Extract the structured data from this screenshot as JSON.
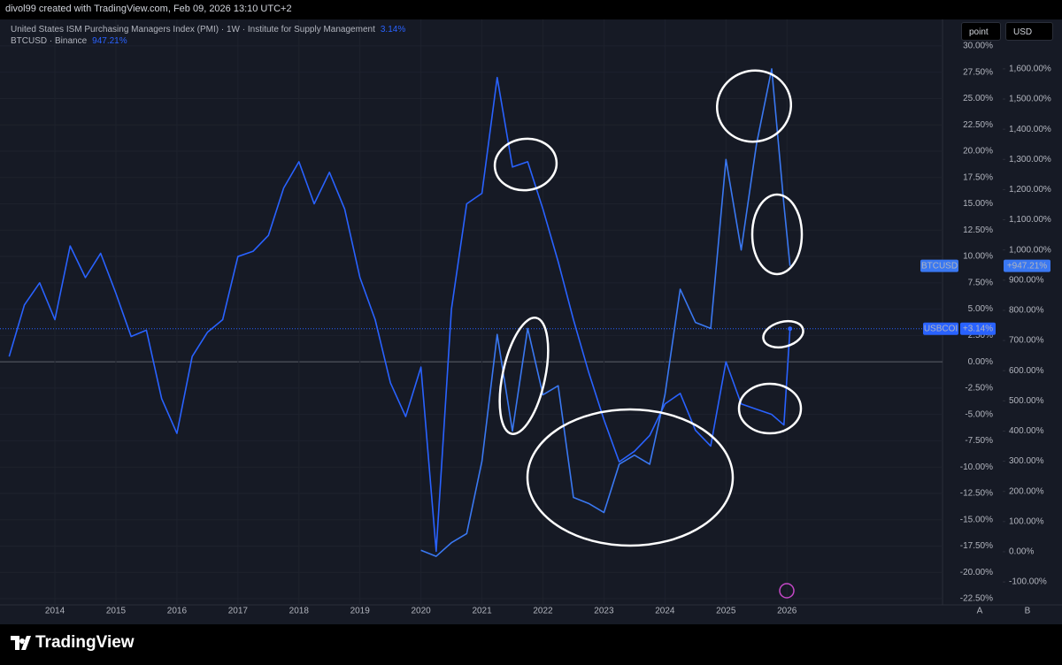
{
  "header": {
    "credit": "divol99 created with TradingView.com, Feb 09, 2026 13:10 UTC+2"
  },
  "toolbar": {
    "buttons": [
      "point",
      "USD"
    ]
  },
  "chart_data": {
    "type": "line",
    "x": [
      2013.25,
      2013.5,
      2013.75,
      2014,
      2014.25,
      2014.5,
      2014.75,
      2015,
      2015.25,
      2015.5,
      2015.75,
      2016,
      2016.25,
      2016.5,
      2016.75,
      2017,
      2017.25,
      2017.5,
      2017.75,
      2018,
      2018.25,
      2018.5,
      2018.75,
      2019,
      2019.25,
      2019.5,
      2019.75,
      2020,
      2020.25,
      2020.5,
      2020.75,
      2021,
      2021.25,
      2021.5,
      2021.75,
      2022,
      2022.25,
      2022.5,
      2022.75,
      2023,
      2023.25,
      2023.5,
      2023.75,
      2024,
      2024.25,
      2024.5,
      2024.75,
      2025,
      2025.25,
      2025.5,
      2025.75,
      2025.95,
      2026.05
    ],
    "series": [
      {
        "name": "United States ISM Purchasing Managers Index (PMI) · 1W · Institute for Supply Management",
        "ticker": "USBCOI",
        "legend_label": "3.14%",
        "axis_label": "+3.14%",
        "color": "#2962ff",
        "values": [
          0.5,
          5.4,
          7.5,
          4.0,
          11.0,
          8.0,
          10.3,
          6.5,
          2.4,
          3.0,
          -3.5,
          -6.8,
          0.5,
          2.8,
          4.0,
          10.0,
          10.5,
          12.0,
          16.5,
          19.0,
          15.0,
          18.0,
          14.5,
          8.0,
          4.0,
          -2.0,
          -5.2,
          -0.5,
          -18.0,
          5.0,
          15.0,
          16.0,
          27.0,
          18.5,
          19.0,
          14.5,
          9.5,
          4.0,
          -1.0,
          -5.5,
          -9.5,
          -8.5,
          -7.0,
          -4.0,
          -3.0,
          -6.5,
          -8.0,
          0.0,
          -4.0,
          -4.5,
          -5.0,
          -6.0,
          3.14
        ]
      },
      {
        "name": "BTCUSD · Binance",
        "ticker": "BTCUSD",
        "legend_label": "947.21%",
        "axis_label": "+947.21%",
        "color": "#3a78f2",
        "axis": "y2",
        "values": [
          null,
          null,
          null,
          null,
          null,
          null,
          null,
          null,
          null,
          null,
          null,
          null,
          null,
          null,
          null,
          null,
          null,
          null,
          null,
          null,
          null,
          null,
          null,
          null,
          null,
          null,
          null,
          5,
          -15,
          30,
          60,
          300,
          720,
          400,
          740,
          520,
          550,
          180,
          160,
          130,
          290,
          320,
          290,
          520,
          870,
          760,
          740,
          1300,
          1000,
          1350,
          1600,
          1150,
          947.21
        ]
      }
    ],
    "xlim": [
      2013.1,
      2028.55
    ],
    "xticks": [
      2014,
      2015,
      2016,
      2017,
      2018,
      2019,
      2020,
      2021,
      2022,
      2023,
      2024,
      2025,
      2026
    ],
    "ylim": [
      -23,
      31
    ],
    "yticks": [
      {
        "value": -22.5,
        "label": "-22.50%"
      },
      {
        "value": -20,
        "label": "-20.00%"
      },
      {
        "value": -17.5,
        "label": "-17.50%"
      },
      {
        "value": -15,
        "label": "-15.00%"
      },
      {
        "value": -12.5,
        "label": "-12.50%"
      },
      {
        "value": -10,
        "label": "-10.00%"
      },
      {
        "value": -7.5,
        "label": "-7.50%"
      },
      {
        "value": -5,
        "label": "-5.00%"
      },
      {
        "value": -2.5,
        "label": "-2.50%"
      },
      {
        "value": 0,
        "label": "0.00%"
      },
      {
        "value": 2.5,
        "label": "2.50%"
      },
      {
        "value": 5,
        "label": "5.00%"
      },
      {
        "value": 7.5,
        "label": "7.50%"
      },
      {
        "value": 10,
        "label": "10.00%"
      },
      {
        "value": 12.5,
        "label": "12.50%"
      },
      {
        "value": 15,
        "label": "15.00%"
      },
      {
        "value": 17.5,
        "label": "17.50%"
      },
      {
        "value": 20,
        "label": "20.00%"
      },
      {
        "value": 22.5,
        "label": "22.50%"
      },
      {
        "value": 25,
        "label": "25.00%"
      },
      {
        "value": 27.5,
        "label": "27.50%"
      },
      {
        "value": 30,
        "label": "30.00%"
      }
    ],
    "y2lim": [
      -173,
      1711
    ],
    "y2ticks": [
      {
        "value": -100,
        "label": "-100.00%"
      },
      {
        "value": 0,
        "label": "0.00%"
      },
      {
        "value": 100,
        "label": "100.00%"
      },
      {
        "value": 200,
        "label": "200.00%"
      },
      {
        "value": 300,
        "label": "300.00%"
      },
      {
        "value": 400,
        "label": "400.00%"
      },
      {
        "value": 500,
        "label": "500.00%"
      },
      {
        "value": 600,
        "label": "600.00%"
      },
      {
        "value": 700,
        "label": "700.00%"
      },
      {
        "value": 800,
        "label": "800.00%"
      },
      {
        "value": 900,
        "label": "900.00%"
      },
      {
        "value": 1000,
        "label": "1,000.00%"
      },
      {
        "value": 1100,
        "label": "1,100.00%"
      },
      {
        "value": 1200,
        "label": "1,200.00%"
      },
      {
        "value": 1300,
        "label": "1,300.00%"
      },
      {
        "value": 1400,
        "label": "1,400.00%"
      },
      {
        "value": 1500,
        "label": "1,500.00%"
      },
      {
        "value": 1600,
        "label": "1,600.00%"
      }
    ],
    "grid": true,
    "scale_labels": [
      "A",
      "B"
    ]
  },
  "footer": {
    "brand": "TradingView"
  }
}
